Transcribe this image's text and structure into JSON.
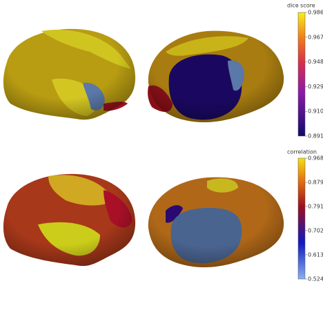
{
  "colorbars": [
    {
      "title": "dice score",
      "lim": [
        0.891,
        0.986
      ],
      "ticks": [
        0.986,
        0.967,
        0.948,
        0.929,
        {
          "value": 0.91,
          "label": "0.910"
        },
        0.891
      ]
    },
    {
      "title": "correlation",
      "lim": [
        0.524,
        0.968
      ],
      "ticks": [
        0.968,
        0.879,
        0.791,
        0.702,
        0.613,
        0.524
      ]
    }
  ]
}
